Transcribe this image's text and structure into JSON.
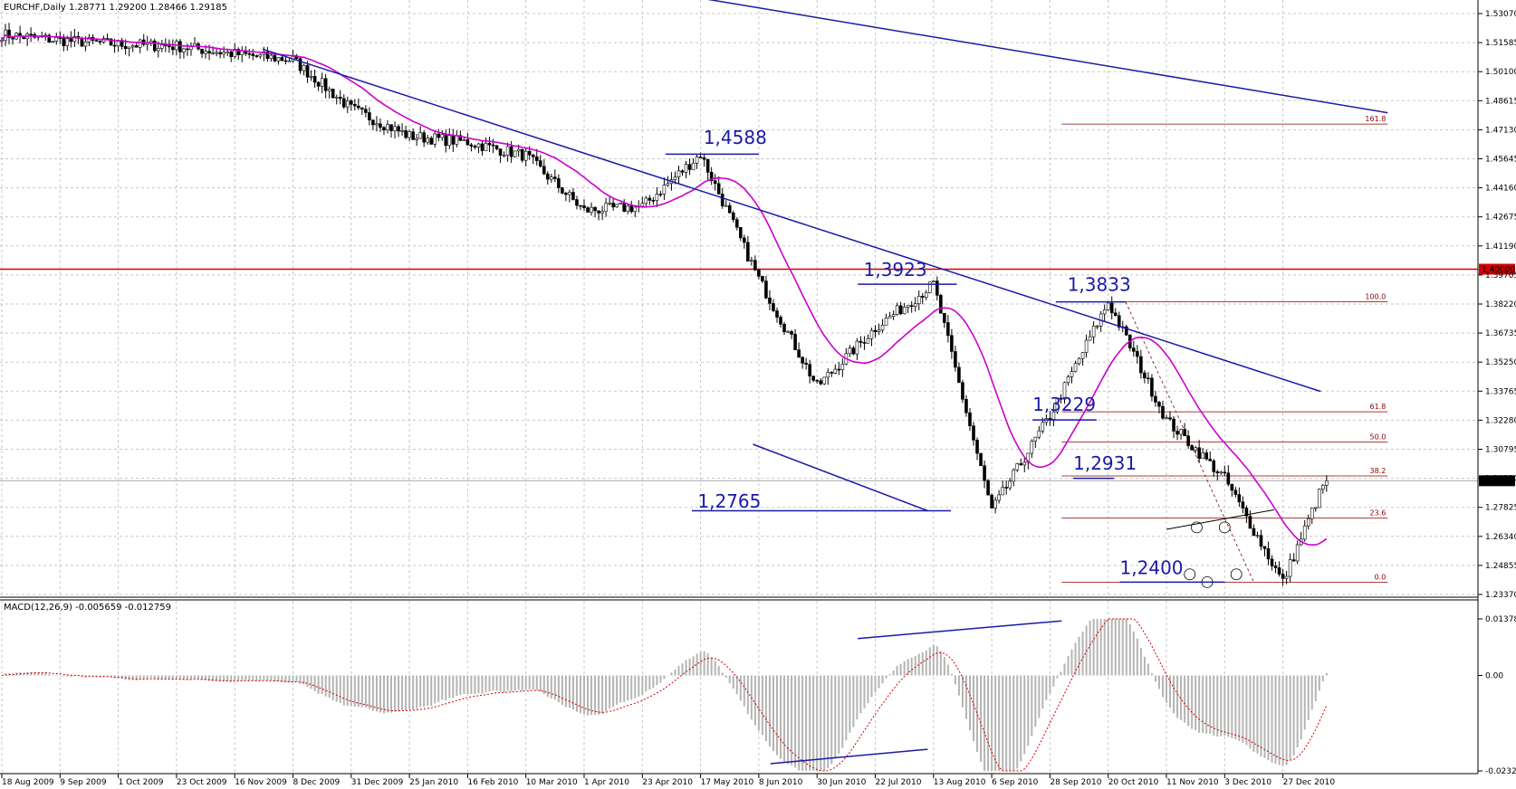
{
  "chart_data": [
    {
      "type": "candlestick",
      "title": "EURCHF,Daily  1.28771 1.29200 1.28466 1.29185",
      "last_price": "1.29185",
      "ylim": [
        1.2337,
        1.5307
      ],
      "y_ticks": [
        "1.53070",
        "1.51585",
        "1.50100",
        "1.48615",
        "1.47130",
        "1.45645",
        "1.44160",
        "1.42675",
        "1.41190",
        "1.39705",
        "1.38220",
        "1.36735",
        "1.35250",
        "1.33765",
        "1.32280",
        "1.30795",
        "1.29310",
        "1.27825",
        "1.26340",
        "1.24855",
        "1.23370"
      ],
      "x_ticks": [
        "18 Aug 2009",
        "9 Sep 2009",
        "1 Oct 2009",
        "23 Oct 2009",
        "16 Nov 2009",
        "8 Dec 2009",
        "31 Dec 2009",
        "25 Jan 2010",
        "16 Feb 2010",
        "10 Mar 2010",
        "1 Apr 2010",
        "23 Apr 2010",
        "17 May 2010",
        "8 Jun 2010",
        "30 Jun 2010",
        "22 Jul 2010",
        "13 Aug 2010",
        "6 Sep 2010",
        "28 Sep 2010",
        "20 Oct 2010",
        "11 Nov 2010",
        "3 Dec 2010",
        "27 Dec 2010"
      ],
      "price_path": [
        {
          "x": "18 Aug 2009",
          "y": 1.52
        },
        {
          "x": "9 Sep 2009",
          "y": 1.517
        },
        {
          "x": "1 Oct 2009",
          "y": 1.515
        },
        {
          "x": "23 Oct 2009",
          "y": 1.514
        },
        {
          "x": "16 Nov 2009",
          "y": 1.51
        },
        {
          "x": "8 Dec 2009",
          "y": 1.507
        },
        {
          "x": "31 Dec 2009",
          "y": 1.482
        },
        {
          "x": "25 Jan 2010",
          "y": 1.468
        },
        {
          "x": "16 Feb 2010",
          "y": 1.465
        },
        {
          "x": "10 Mar 2010",
          "y": 1.458
        },
        {
          "x": "1 Apr 2010",
          "y": 1.43
        },
        {
          "x": "23 Apr 2010",
          "y": 1.432
        },
        {
          "x": "17 May 2010",
          "y": 1.4588
        },
        {
          "x": "8 Jun 2010",
          "y": 1.395
        },
        {
          "x": "30 Jun 2010",
          "y": 1.34
        },
        {
          "x": "22 Jul 2010",
          "y": 1.37
        },
        {
          "x": "13 Aug 2010",
          "y": 1.3923
        },
        {
          "x": "6 Sep 2010",
          "y": 1.2765
        },
        {
          "x": "28 Sep 2010",
          "y": 1.325
        },
        {
          "x": "20 Oct 2010",
          "y": 1.3833
        },
        {
          "x": "11 Nov 2010",
          "y": 1.3229
        },
        {
          "x": "3 Dec 2010",
          "y": 1.2931
        },
        {
          "x": "27 Dec 2010",
          "y": 1.24
        },
        {
          "x": "27 Dec 2010",
          "y": 1.29185
        }
      ],
      "horizontal_level": {
        "value": 1.4,
        "label": "1.40000",
        "color": "#d40000"
      },
      "annotations": [
        "1,4588",
        "1,3923",
        "1,3833",
        "1,3229",
        "1,2931",
        "1,2765",
        "1,2400"
      ],
      "fibonacci": {
        "levels": [
          {
            "label": "161.8",
            "value": 1.4742
          },
          {
            "label": "100.0",
            "value": 1.3833
          },
          {
            "label": "61.8",
            "value": 1.3271
          },
          {
            "label": "50.0",
            "value": 1.3117
          },
          {
            "label": "38.2",
            "value": 1.2943
          },
          {
            "label": "23.6",
            "value": 1.2728
          },
          {
            "label": "0.0",
            "value": 1.24
          }
        ]
      },
      "series": [
        {
          "name": "EURCHF",
          "color": "#000000"
        },
        {
          "name": "MA",
          "color": "#cc00cc"
        }
      ]
    },
    {
      "type": "macd",
      "title": "MACD(12,26,9) -0.005659 -0.012759",
      "ylim": [
        -0.02327,
        0.013786
      ],
      "y_ticks": [
        "0.013786",
        "0.00",
        "-0.02327"
      ],
      "histogram_color": "#b4b4b4",
      "signal_color": "#d40000"
    }
  ]
}
